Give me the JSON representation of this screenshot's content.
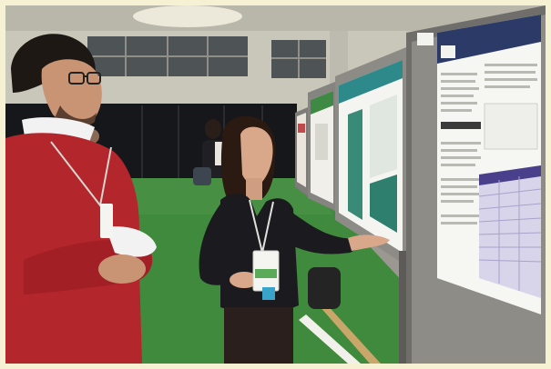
{
  "photo": {
    "frame_color": "#f7f1d4",
    "floor_color": "#3f8a3c",
    "sweater_color": "#b3262c",
    "blazer_color": "#1b1b1f",
    "poster_accent": "#2e7b6a"
  },
  "posters": {
    "front_title": "",
    "table_header": ""
  }
}
